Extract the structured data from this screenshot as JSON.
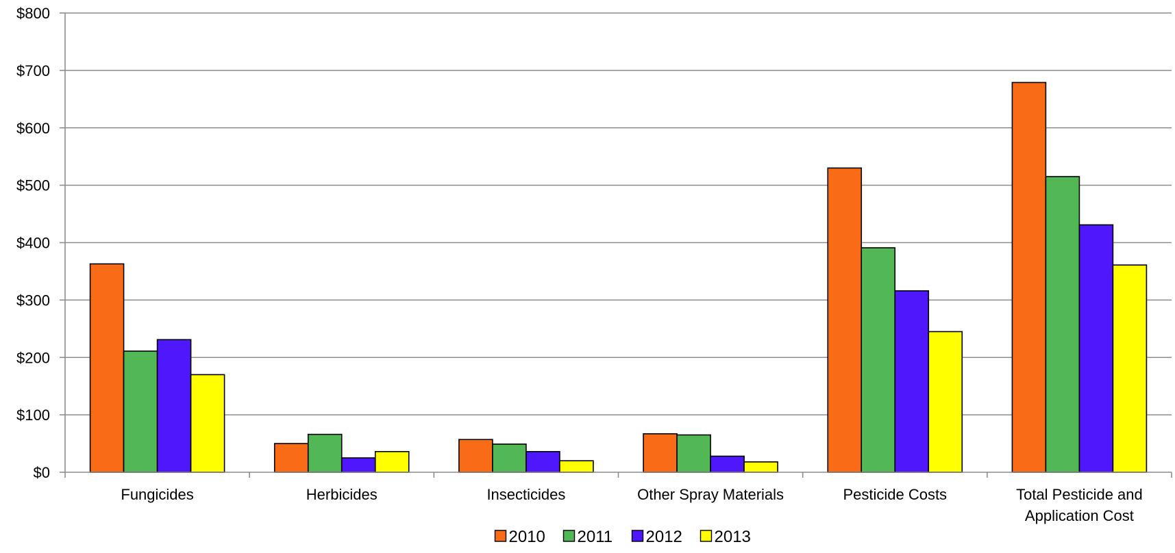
{
  "chart_data": {
    "type": "bar",
    "categories": [
      "Fungicides",
      "Herbicides",
      "Insecticides",
      "Other Spray Materials",
      "Pesticide Costs",
      "Total Pesticide and Application Cost"
    ],
    "category_lines": [
      [
        "Fungicides"
      ],
      [
        "Herbicides"
      ],
      [
        "Insecticides"
      ],
      [
        "Other Spray Materials"
      ],
      [
        "Pesticide Costs"
      ],
      [
        "Total Pesticide and",
        "Application Cost"
      ]
    ],
    "series": [
      {
        "name": "2010",
        "color": "#F96B16",
        "values": [
          363,
          50,
          57,
          67,
          530,
          679
        ]
      },
      {
        "name": "2011",
        "color": "#52B855",
        "values": [
          211,
          66,
          49,
          65,
          391,
          515
        ]
      },
      {
        "name": "2012",
        "color": "#4F18FC",
        "values": [
          231,
          25,
          36,
          28,
          316,
          431
        ]
      },
      {
        "name": "2013",
        "color": "#FFFF00",
        "values": [
          170,
          36,
          20,
          18,
          245,
          361
        ]
      }
    ],
    "ylim": [
      0,
      800
    ],
    "yticks": [
      0,
      100,
      200,
      300,
      400,
      500,
      600,
      700,
      800
    ],
    "ytick_labels": [
      "$0",
      "$100",
      "$200",
      "$300",
      "$400",
      "$500",
      "$600",
      "$700",
      "$800"
    ],
    "title": "",
    "xlabel": "",
    "ylabel": "",
    "grid": true,
    "legend_position": "bottom-center",
    "colors": {
      "grid": "#8C8C8C",
      "axis": "#8C8C8C",
      "bar_outline": "#000000"
    }
  }
}
